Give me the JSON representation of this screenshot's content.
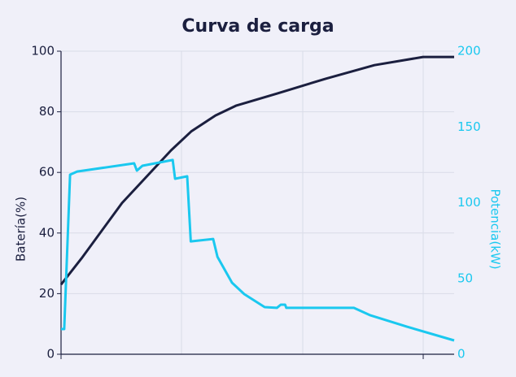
{
  "chart_data": {
    "type": "line",
    "title": "Curva de carga",
    "y_label": "Batería(%)",
    "y2_label": "Potencia(kW)",
    "xlim": [
      0,
      100
    ],
    "ylim": [
      0,
      100
    ],
    "yticks": [
      0,
      20,
      40,
      60,
      80,
      100
    ],
    "y2lim": [
      0,
      200
    ],
    "y2ticks": [
      0,
      50,
      100,
      150,
      200
    ],
    "grid": true,
    "series": [
      {
        "name": "Batería",
        "color": "#1b1f3f",
        "x": [
          0,
          5.2,
          15.5,
          28,
          33.1,
          39.3,
          44.5,
          54.9,
          67.3,
          79.7,
          92.1,
          100
        ],
        "values": [
          23,
          31.6,
          49.9,
          67.3,
          73.5,
          78.8,
          82,
          86,
          90.9,
          95.4,
          98.1,
          98.1
        ]
      },
      {
        "name": "Potencia",
        "color": "#1ac8ef",
        "axis": "y2",
        "x": [
          0,
          0.8,
          2.3,
          4.1,
          18.6,
          19.3,
          20.7,
          28.4,
          29,
          32.1,
          33,
          38.7,
          39.8,
          43.5,
          46.6,
          51.8,
          54.9,
          55.9,
          57,
          57.3,
          74.5,
          78.7,
          88,
          100
        ],
        "values": [
          16.6,
          16.6,
          118.5,
          120.6,
          126,
          121.2,
          124.4,
          128.2,
          115.8,
          117.4,
          74.5,
          76.1,
          64.3,
          47.2,
          39.7,
          31.1,
          30.6,
          32.7,
          32.7,
          30.6,
          30.6,
          25.7,
          18.2,
          9.1
        ]
      }
    ]
  }
}
